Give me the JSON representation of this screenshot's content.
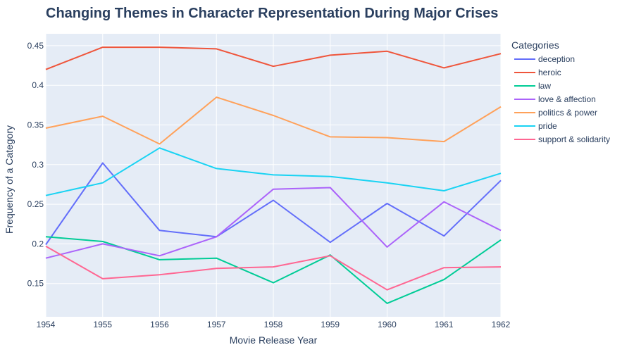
{
  "chart_data": {
    "type": "line",
    "title": "Changing Themes in Character Representation During Major Crises",
    "xlabel": "Movie Release Year",
    "ylabel": "Frequency of a Category",
    "x": [
      1954,
      1955,
      1956,
      1957,
      1958,
      1959,
      1960,
      1961,
      1962
    ],
    "x_tick_labels": [
      "1954",
      "1955",
      "1956",
      "1957",
      "1958",
      "1959",
      "1960",
      "1961",
      "1962"
    ],
    "xlim": [
      1954,
      1962
    ],
    "ylim": [
      0.108,
      0.465
    ],
    "y_ticks": [
      0.15,
      0.2,
      0.25,
      0.3,
      0.35,
      0.4,
      0.45
    ],
    "y_tick_labels": [
      "0.15",
      "0.2",
      "0.25",
      "0.3",
      "0.35",
      "0.4",
      "0.45"
    ],
    "grid": true,
    "plot_background": "#e5ecf6",
    "legend": {
      "title": "Categories",
      "placement": "top-right-outside"
    },
    "series": [
      {
        "name": "deception",
        "color": "#636efa",
        "values": [
          0.199,
          0.302,
          0.217,
          0.209,
          0.255,
          0.202,
          0.251,
          0.21,
          0.28
        ]
      },
      {
        "name": "heroic",
        "color": "#ef553b",
        "values": [
          0.42,
          0.448,
          0.448,
          0.446,
          0.424,
          0.438,
          0.443,
          0.422,
          0.44
        ]
      },
      {
        "name": "law",
        "color": "#00cc96",
        "values": [
          0.209,
          0.203,
          0.18,
          0.182,
          0.151,
          0.186,
          0.125,
          0.155,
          0.205
        ]
      },
      {
        "name": "love & affection",
        "color": "#ab63fa",
        "values": [
          0.182,
          0.2,
          0.185,
          0.209,
          0.269,
          0.271,
          0.196,
          0.253,
          0.217
        ]
      },
      {
        "name": "politics & power",
        "color": "#ffa15a",
        "values": [
          0.346,
          0.361,
          0.326,
          0.385,
          0.362,
          0.335,
          0.334,
          0.329,
          0.373
        ]
      },
      {
        "name": "pride",
        "color": "#19d3f3",
        "values": [
          0.261,
          0.277,
          0.321,
          0.295,
          0.287,
          0.285,
          0.277,
          0.267,
          0.289
        ]
      },
      {
        "name": "support & solidarity",
        "color": "#ff6692",
        "values": [
          0.197,
          0.156,
          0.161,
          0.169,
          0.171,
          0.185,
          0.142,
          0.17,
          0.171
        ]
      }
    ]
  }
}
